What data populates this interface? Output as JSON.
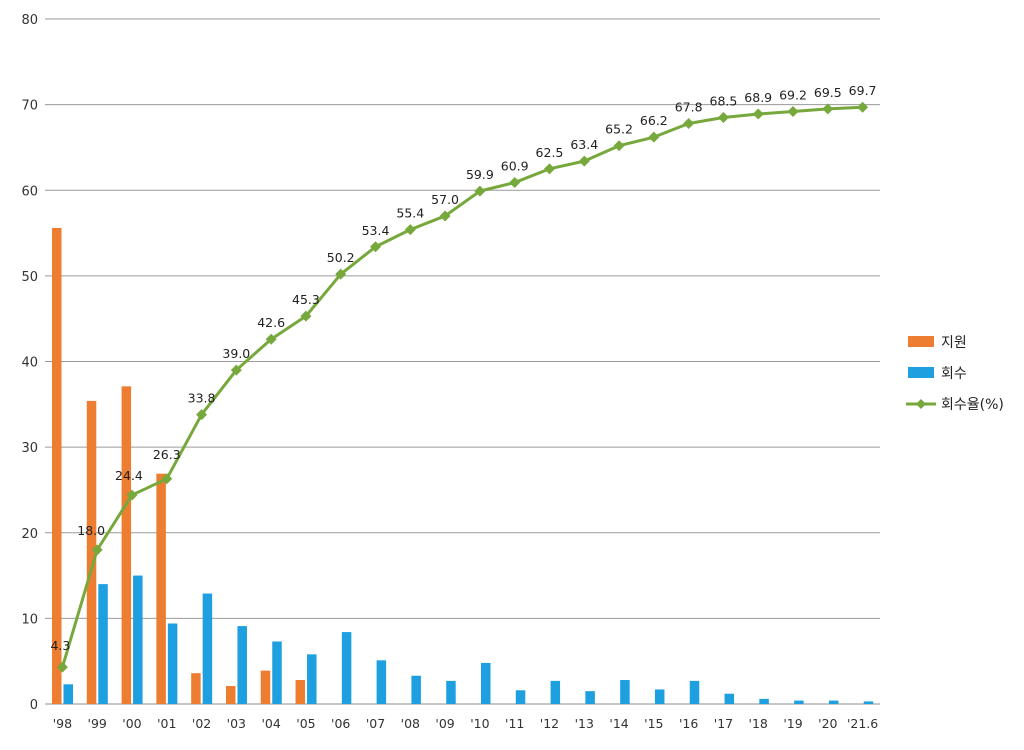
{
  "chart_data": {
    "type": "bar+line",
    "categories": [
      "'98",
      "'99",
      "'00",
      "'01",
      "'02",
      "'03",
      "'04",
      "'05",
      "'06",
      "'07",
      "'08",
      "'09",
      "'10",
      "'11",
      "'12",
      "'13",
      "'14",
      "'15",
      "'16",
      "'17",
      "'18",
      "'19",
      "'20",
      "'21.6"
    ],
    "ylim": [
      0,
      80
    ],
    "yticks": [
      "0",
      "10",
      "20",
      "30",
      "40",
      "50",
      "60",
      "70",
      "80"
    ],
    "grid": true,
    "legend_position": "right",
    "series": [
      {
        "name": "지원",
        "kind": "bar",
        "color": "#ED7D31",
        "values": [
          55.6,
          35.4,
          37.1,
          26.9,
          3.6,
          2.1,
          3.9,
          2.8,
          0,
          0,
          0,
          0,
          0,
          0,
          0,
          0,
          0,
          0,
          0,
          0,
          0,
          0,
          0,
          0
        ]
      },
      {
        "name": "회수",
        "kind": "bar",
        "color": "#1E9FE0",
        "values": [
          2.3,
          14.0,
          15.0,
          9.4,
          12.9,
          9.1,
          7.3,
          5.8,
          8.4,
          5.1,
          3.3,
          2.7,
          4.8,
          1.6,
          2.7,
          1.5,
          2.8,
          1.7,
          2.7,
          1.2,
          0.6,
          0.4,
          0.4,
          0.3
        ]
      },
      {
        "name": "회수율(%)",
        "kind": "line",
        "color": "#77A83C",
        "values": [
          4.3,
          18.0,
          24.4,
          26.3,
          33.8,
          39.0,
          42.6,
          45.3,
          50.2,
          53.4,
          55.4,
          57.0,
          59.9,
          60.9,
          62.5,
          63.4,
          65.2,
          66.2,
          67.8,
          68.5,
          68.9,
          69.2,
          69.5,
          69.7
        ],
        "labels": [
          "4.3",
          "18.0",
          "24.4",
          "26.3",
          "33.8",
          "39.0",
          "42.6",
          "45.3",
          "50.2",
          "53.4",
          "55.4",
          "57.0",
          "59.9",
          "60.9",
          "62.5",
          "63.4",
          "65.2",
          "66.2",
          "67.8",
          "68.5",
          "68.9",
          "69.2",
          "69.5",
          "69.7"
        ]
      }
    ]
  }
}
